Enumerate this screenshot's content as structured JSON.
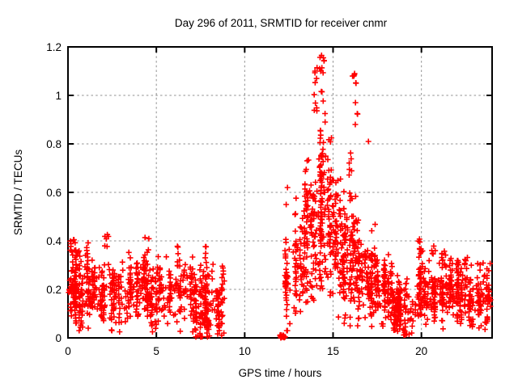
{
  "title": "Day 296 of 2011, SRMTID for receiver cnmr",
  "chart_data": {
    "type": "scatter",
    "title": "Day 296 of 2011, SRMTID for receiver cnmr",
    "xlabel": "GPS time / hours",
    "ylabel": "SRMTID / TECUs",
    "xlim": [
      0,
      24
    ],
    "ylim": [
      0,
      1.2
    ],
    "xticks": [
      0,
      5,
      10,
      15,
      20
    ],
    "xtick_labels": [
      "0",
      "5",
      "10",
      "15",
      "20"
    ],
    "yticks": [
      0,
      0.2,
      0.4,
      0.6,
      0.8,
      1,
      1.2
    ],
    "ytick_labels": [
      "0",
      "0.2",
      "0.4",
      "0.6",
      "0.8",
      "1",
      "1.2"
    ],
    "grid": true,
    "legend": "none",
    "marker": {
      "shape": "plus",
      "color": "#ff0000",
      "size": 7,
      "stroke_width": 1.6
    },
    "grid_color": "#909090",
    "axis_color": "#000000",
    "data_gap_hours": [
      8.85,
      12.0
    ],
    "max_value": 1.17,
    "max_value_hour": 14.4,
    "secondary_peak_value": 1.09,
    "secondary_peak_hour": 16.25,
    "scatter": {
      "seed": 1296,
      "column_x_jitter": 0.1,
      "column_bias": 0.14,
      "spread_factor": 1.5,
      "zero_block": {
        "x0": 12.0,
        "x1": 12.3,
        "y0": 0.0,
        "y1": 0.012,
        "n": 26
      },
      "segments": [
        {
          "x0": 0.0,
          "x1": 8.85,
          "n": 620,
          "yc": 0.2,
          "ys": 0.11,
          "ymin": 0.025,
          "ymax": 0.43,
          "cols": 46
        },
        {
          "x0": 0.0,
          "x1": 8.85,
          "n": 140,
          "yc": 0.18,
          "ys": 0.09,
          "ymin": 0.03,
          "ymax": 0.4,
          "cols": 0
        },
        {
          "x0": 7.2,
          "x1": 8.85,
          "n": 70,
          "yc": 0.09,
          "ys": 0.07,
          "ymin": 0.004,
          "ymax": 0.22,
          "cols": 6
        },
        {
          "x0": 12.25,
          "x1": 12.6,
          "n": 40,
          "yc": 0.22,
          "ys": 0.16,
          "ymin": 0.03,
          "ymax": 0.6,
          "cols": 4
        },
        {
          "x0": 12.6,
          "x1": 13.4,
          "n": 70,
          "yc": 0.3,
          "ys": 0.17,
          "ymin": 0.04,
          "ymax": 0.72,
          "cols": 7
        },
        {
          "x0": 13.4,
          "x1": 14.1,
          "n": 95,
          "yc": 0.42,
          "ys": 0.24,
          "ymin": 0.05,
          "ymax": 1.02,
          "cols": 8
        },
        {
          "x0": 14.1,
          "x1": 14.9,
          "n": 115,
          "yc": 0.5,
          "ys": 0.27,
          "ymin": 0.07,
          "ymax": 1.12,
          "cols": 9
        },
        {
          "x0": 14.9,
          "x1": 15.7,
          "n": 115,
          "yc": 0.38,
          "ys": 0.2,
          "ymin": 0.06,
          "ymax": 0.85,
          "cols": 9
        },
        {
          "x0": 15.7,
          "x1": 16.5,
          "n": 100,
          "yc": 0.33,
          "ys": 0.19,
          "ymin": 0.05,
          "ymax": 0.9,
          "cols": 8
        },
        {
          "x0": 16.5,
          "x1": 17.4,
          "n": 95,
          "yc": 0.24,
          "ys": 0.14,
          "ymin": 0.04,
          "ymax": 0.66,
          "cols": 8
        },
        {
          "x0": 17.4,
          "x1": 18.6,
          "n": 135,
          "yc": 0.16,
          "ys": 0.09,
          "ymin": 0.02,
          "ymax": 0.38,
          "cols": 10
        },
        {
          "x0": 18.6,
          "x1": 19.7,
          "n": 125,
          "yc": 0.12,
          "ys": 0.08,
          "ymin": 0.012,
          "ymax": 0.3,
          "cols": 10
        },
        {
          "x0": 19.7,
          "x1": 20.9,
          "n": 125,
          "yc": 0.18,
          "ys": 0.1,
          "ymin": 0.03,
          "ymax": 0.42,
          "cols": 10
        },
        {
          "x0": 20.9,
          "x1": 22.2,
          "n": 135,
          "yc": 0.2,
          "ys": 0.1,
          "ymin": 0.035,
          "ymax": 0.4,
          "cols": 10
        },
        {
          "x0": 22.2,
          "x1": 23.93,
          "n": 160,
          "yc": 0.19,
          "ys": 0.1,
          "ymin": 0.03,
          "ymax": 0.38,
          "cols": 12
        }
      ],
      "clusters": [
        {
          "x0": 0.05,
          "x1": 0.5,
          "y0": 0.33,
          "y1": 0.425,
          "n": 8
        },
        {
          "x0": 0.2,
          "x1": 1.2,
          "y0": 0.3,
          "y1": 0.38,
          "n": 10
        },
        {
          "x0": 2.05,
          "x1": 2.3,
          "y0": 0.36,
          "y1": 0.43,
          "n": 6
        },
        {
          "x0": 4.35,
          "x1": 4.6,
          "y0": 0.33,
          "y1": 0.42,
          "n": 5
        },
        {
          "x0": 13.9,
          "x1": 14.15,
          "y0": 0.92,
          "y1": 1.12,
          "n": 9
        },
        {
          "x0": 14.2,
          "x1": 14.6,
          "y0": 0.85,
          "y1": 1.17,
          "n": 12
        },
        {
          "x0": 14.25,
          "x1": 14.55,
          "y0": 0.6,
          "y1": 0.9,
          "n": 14
        },
        {
          "x0": 16.1,
          "x1": 16.4,
          "y0": 0.82,
          "y1": 1.09,
          "n": 7
        },
        {
          "x0": 15.9,
          "x1": 16.05,
          "y0": 0.55,
          "y1": 0.8,
          "n": 8
        },
        {
          "x0": 19.8,
          "x1": 20.1,
          "y0": 0.32,
          "y1": 0.44,
          "n": 5
        },
        {
          "x0": 20.5,
          "x1": 20.8,
          "y0": 0.3,
          "y1": 0.4,
          "n": 5
        },
        {
          "x0": 21.0,
          "x1": 21.4,
          "y0": 0.28,
          "y1": 0.38,
          "n": 6
        }
      ],
      "highlights": [
        [
          14.35,
          1.165
        ],
        [
          14.45,
          1.155
        ],
        [
          14.3,
          1.1
        ],
        [
          13.98,
          1.1
        ],
        [
          16.22,
          1.09
        ],
        [
          16.3,
          1.05
        ],
        [
          16.27,
          0.97
        ],
        [
          17.0,
          0.81
        ],
        [
          12.42,
          0.62
        ],
        [
          12.35,
          0.55
        ],
        [
          8.82,
          0.02
        ],
        [
          8.7,
          0.01
        ],
        [
          8.0,
          0.008
        ],
        [
          7.6,
          0.005
        ],
        [
          7.35,
          0.01
        ],
        [
          19.3,
          0.015
        ],
        [
          19.45,
          0.02
        ],
        [
          23.6,
          0.035
        ]
      ]
    }
  }
}
